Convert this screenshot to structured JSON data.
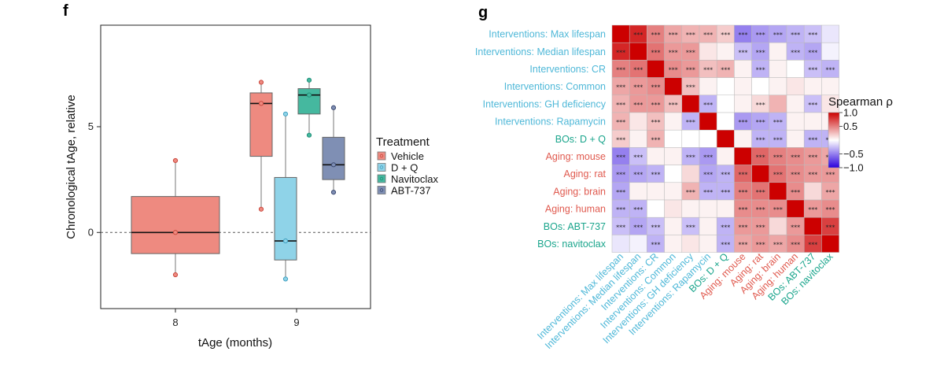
{
  "panels": {
    "left_letter": "f",
    "right_letter": "g"
  },
  "colors": {
    "vehicle": "#ee8a80",
    "dq": "#8fd3e8",
    "navitoclax": "#45b89f",
    "abt737": "#7f8fb4",
    "cyan_label": "#4fb8d8",
    "red_label": "#e05a4f",
    "teal_label": "#1aa58c"
  },
  "chart_data": [
    {
      "type": "box",
      "xlabel": "tAge (months)",
      "ylabel": "Chronological tAge, relative",
      "categories": [
        "8",
        "9"
      ],
      "ylim": [
        -3.6,
        9.8
      ],
      "yticks": [
        0,
        5
      ],
      "reference_line": 0,
      "legend": {
        "title": "Treatment",
        "position": "right",
        "entries": [
          "Vehicle",
          "D + Q",
          "Navitoclax",
          "ABT-737"
        ]
      },
      "boxes": [
        {
          "group": "Vehicle",
          "category": "8",
          "min": -2.0,
          "q1": -1.0,
          "median": 0.0,
          "q3": 1.7,
          "max": 3.4,
          "points": [
            -2.0,
            0.0,
            3.4
          ]
        },
        {
          "group": "Vehicle",
          "category": "9",
          "min": 1.1,
          "q1": 3.6,
          "median": 6.1,
          "q3": 6.6,
          "max": 7.1,
          "points": [
            1.1,
            6.1,
            7.1
          ]
        },
        {
          "group": "D + Q",
          "category": "9",
          "min": -2.2,
          "q1": -1.3,
          "median": -0.4,
          "q3": 2.6,
          "max": 5.6,
          "points": [
            -2.2,
            -0.4,
            5.6
          ]
        },
        {
          "group": "Navitoclax",
          "category": "9",
          "min": 4.6,
          "q1": 5.6,
          "median": 6.5,
          "q3": 6.8,
          "max": 7.2,
          "points": [
            4.6,
            6.5,
            7.2
          ]
        },
        {
          "group": "ABT-737",
          "category": "9",
          "min": 1.9,
          "q1": 2.5,
          "median": 3.2,
          "q3": 4.5,
          "max": 5.9,
          "points": [
            1.9,
            3.2,
            5.9
          ]
        }
      ]
    },
    {
      "type": "heatmap",
      "legend": {
        "title": "Spearman ρ",
        "ticks": [
          "1.0",
          "0.5",
          "−0.5",
          "−1.0"
        ],
        "tick_values": [
          1.0,
          0.5,
          -0.5,
          -1.0
        ],
        "position": "right"
      },
      "labels": [
        "Interventions: Max lifespan",
        "Interventions: Median lifespan",
        "Interventions: CR",
        "Interventions: Common",
        "Interventions: GH deficiency",
        "Interventions: Rapamycin",
        "BOs: D + Q",
        "Aging: mouse",
        "Aging: rat",
        "Aging: brain",
        "Aging: human",
        "BOs: ABT-737",
        "BOs: navitoclax"
      ],
      "label_color_keys": [
        "cyan_label",
        "cyan_label",
        "cyan_label",
        "cyan_label",
        "cyan_label",
        "cyan_label",
        "teal_label",
        "red_label",
        "red_label",
        "red_label",
        "red_label",
        "teal_label",
        "teal_label"
      ],
      "star_text": "***",
      "values": [
        [
          1.0,
          0.85,
          0.5,
          0.35,
          0.3,
          0.3,
          0.2,
          -0.5,
          -0.4,
          -0.35,
          -0.3,
          -0.25,
          -0.1
        ],
        [
          0.85,
          1.0,
          0.55,
          0.4,
          0.4,
          0.1,
          0.05,
          -0.25,
          -0.35,
          0.05,
          -0.3,
          -0.35,
          -0.05
        ],
        [
          0.5,
          0.55,
          1.0,
          0.45,
          0.4,
          0.25,
          0.3,
          0.05,
          -0.3,
          0.05,
          0.0,
          -0.25,
          -0.3
        ],
        [
          0.35,
          0.4,
          0.45,
          1.0,
          0.25,
          0.05,
          0.0,
          0.05,
          0.0,
          0.05,
          0.1,
          0.05,
          0.05
        ],
        [
          0.3,
          0.4,
          0.4,
          0.25,
          1.0,
          -0.3,
          0.0,
          0.05,
          0.15,
          0.3,
          0.05,
          -0.25,
          0.1
        ],
        [
          0.3,
          0.1,
          0.25,
          0.05,
          -0.3,
          1.0,
          0.0,
          -0.4,
          -0.35,
          -0.3,
          0.05,
          0.05,
          0.05
        ],
        [
          0.2,
          0.05,
          0.3,
          0.0,
          0.0,
          0.0,
          1.0,
          0.05,
          -0.3,
          -0.3,
          0.05,
          -0.3,
          -0.3
        ],
        [
          -0.5,
          -0.25,
          0.05,
          0.05,
          -0.3,
          -0.4,
          0.05,
          1.0,
          0.6,
          0.5,
          0.45,
          0.4,
          0.35
        ],
        [
          -0.4,
          -0.35,
          -0.3,
          0.0,
          0.15,
          -0.35,
          -0.3,
          0.6,
          1.0,
          0.55,
          0.45,
          0.4,
          0.4
        ],
        [
          -0.35,
          0.05,
          0.05,
          0.05,
          0.3,
          -0.3,
          -0.3,
          0.5,
          0.55,
          1.0,
          0.45,
          0.15,
          0.35
        ],
        [
          -0.3,
          -0.3,
          0.0,
          0.1,
          0.05,
          0.05,
          0.05,
          0.45,
          0.45,
          0.45,
          1.0,
          0.4,
          0.45
        ],
        [
          -0.25,
          -0.35,
          -0.25,
          0.05,
          -0.25,
          0.05,
          -0.3,
          0.4,
          0.4,
          0.15,
          0.4,
          1.0,
          0.75
        ],
        [
          -0.1,
          -0.05,
          -0.3,
          0.05,
          0.1,
          0.05,
          -0.3,
          0.35,
          0.4,
          0.35,
          0.45,
          0.75,
          1.0
        ]
      ],
      "significance": [
        [
          0,
          1,
          1,
          1,
          1,
          1,
          1,
          1,
          1,
          1,
          1,
          1,
          0
        ],
        [
          1,
          0,
          1,
          1,
          1,
          0,
          0,
          1,
          1,
          0,
          1,
          1,
          0
        ],
        [
          1,
          1,
          0,
          1,
          1,
          1,
          1,
          0,
          1,
          0,
          0,
          1,
          1
        ],
        [
          1,
          1,
          1,
          0,
          1,
          0,
          0,
          0,
          0,
          0,
          0,
          0,
          0
        ],
        [
          1,
          1,
          1,
          1,
          0,
          1,
          0,
          0,
          1,
          0,
          0,
          1,
          0
        ],
        [
          1,
          0,
          1,
          0,
          1,
          0,
          0,
          1,
          1,
          1,
          0,
          0,
          0
        ],
        [
          1,
          0,
          1,
          0,
          0,
          0,
          0,
          0,
          1,
          1,
          0,
          1,
          1
        ],
        [
          1,
          1,
          0,
          0,
          1,
          1,
          0,
          0,
          1,
          1,
          1,
          1,
          1
        ],
        [
          1,
          1,
          1,
          0,
          0,
          1,
          1,
          1,
          0,
          1,
          1,
          1,
          1
        ],
        [
          1,
          0,
          0,
          0,
          1,
          1,
          1,
          1,
          1,
          0,
          1,
          0,
          1
        ],
        [
          1,
          1,
          0,
          0,
          0,
          0,
          0,
          1,
          1,
          1,
          0,
          1,
          1
        ],
        [
          1,
          1,
          1,
          0,
          1,
          0,
          1,
          1,
          1,
          0,
          1,
          0,
          1
        ],
        [
          0,
          0,
          1,
          0,
          0,
          0,
          1,
          1,
          1,
          1,
          1,
          1,
          0
        ]
      ]
    }
  ]
}
